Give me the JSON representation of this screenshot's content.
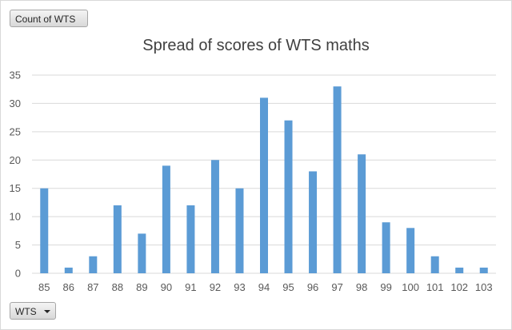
{
  "buttons": {
    "value_field": "Count of WTS",
    "axis_field": "WTS"
  },
  "colors": {
    "bar": "#5b9bd5",
    "grid": "#d9d9d9"
  },
  "chart_data": {
    "type": "bar",
    "title": "Spread of scores of WTS maths",
    "xlabel": "",
    "ylabel": "",
    "categories": [
      "85",
      "86",
      "87",
      "88",
      "89",
      "90",
      "91",
      "92",
      "93",
      "94",
      "95",
      "96",
      "97",
      "98",
      "99",
      "100",
      "101",
      "102",
      "103"
    ],
    "values": [
      15,
      1,
      3,
      12,
      7,
      19,
      12,
      20,
      15,
      31,
      27,
      18,
      33,
      21,
      9,
      8,
      3,
      1,
      1
    ],
    "ylim": [
      0,
      35
    ],
    "yticks": [
      0,
      5,
      10,
      15,
      20,
      25,
      30,
      35
    ],
    "grid": true,
    "legend": false
  }
}
